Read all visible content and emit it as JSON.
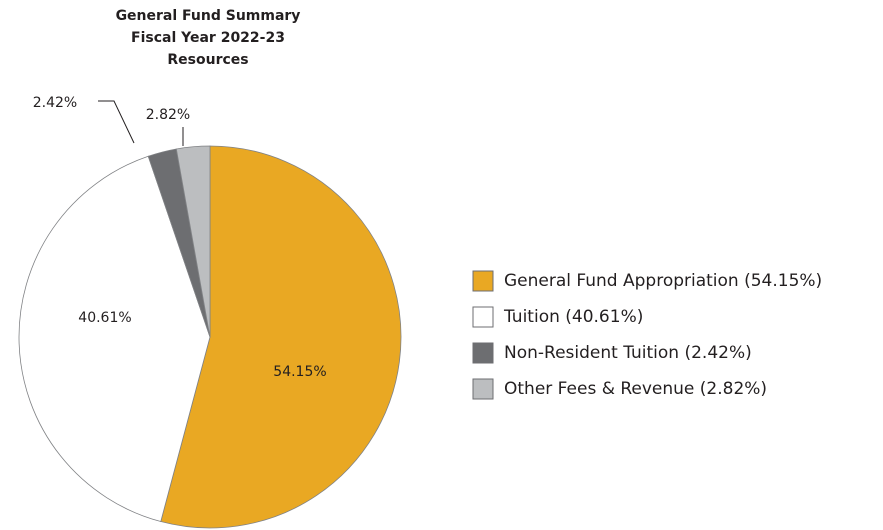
{
  "chart_data": {
    "type": "pie",
    "title": [
      "General Fund Summary",
      "Fiscal Year 2022-23",
      "Resources"
    ],
    "categories": [
      "General Fund Appropriation (54.15%)",
      "Tuition (40.61%)",
      "Non-Resident Tuition (2.42%)",
      "Other Fees & Revenue (2.82%)"
    ],
    "values": [
      54.15,
      40.61,
      2.42,
      2.82
    ],
    "value_labels": [
      "54.15%",
      "40.61%",
      "2.42%",
      "2.82%"
    ],
    "colors": [
      "#e9a823",
      "#ffffff",
      "#6d6e71",
      "#bcbec0"
    ],
    "legend": "right"
  }
}
